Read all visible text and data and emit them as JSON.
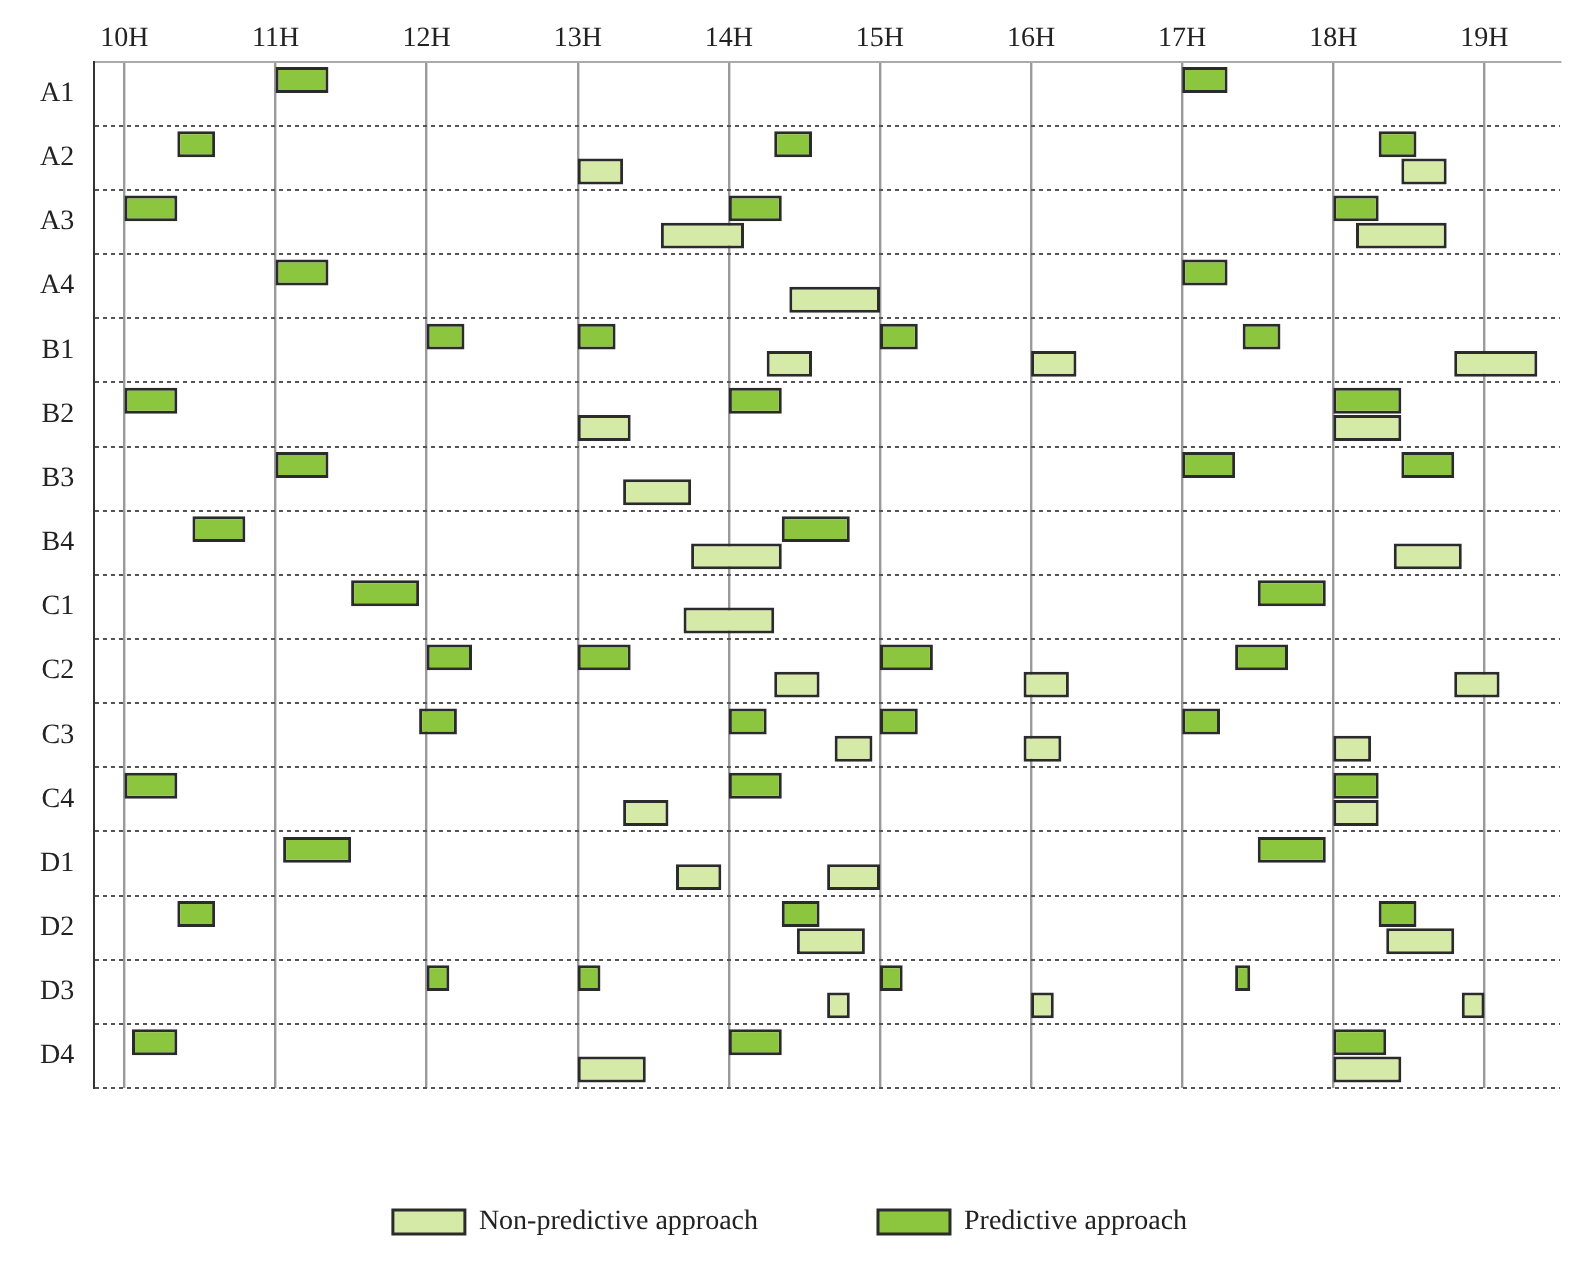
{
  "chart_data": {
    "type": "bar",
    "orientation": "horizontal",
    "categories": [
      "A1",
      "A2",
      "A3",
      "A4",
      "B1",
      "B2",
      "B3",
      "B4",
      "C1",
      "C2",
      "C3",
      "C4",
      "D1",
      "D2",
      "D3",
      "D4"
    ],
    "xlim": [
      9.8,
      19.5
    ],
    "xticks": [
      {
        "value": 10,
        "label": "10H"
      },
      {
        "value": 11,
        "label": "11H"
      },
      {
        "value": 12,
        "label": "12H"
      },
      {
        "value": 13,
        "label": "13H"
      },
      {
        "value": 14,
        "label": "14H"
      },
      {
        "value": 15,
        "label": "15H"
      },
      {
        "value": 16,
        "label": "16H"
      },
      {
        "value": 17,
        "label": "17H"
      },
      {
        "value": 18,
        "label": "18H"
      },
      {
        "value": 19,
        "label": "19H"
      }
    ],
    "grid": true,
    "legend": "bottom",
    "series": [
      {
        "name": "Predictive approach",
        "color": "#8cc63e",
        "base": [
          11.0,
          10.35,
          10.0,
          11.0,
          12.0,
          10.0,
          11.0,
          10.45,
          11.5,
          12.0,
          11.95,
          10.0,
          11.05,
          10.35,
          12.0,
          10.05
        ],
        "values": [
          0.35,
          0.25,
          0.35,
          0.35,
          0.25,
          0.35,
          0.35,
          0.35,
          0.45,
          0.3,
          0.25,
          0.35,
          0.45,
          0.25,
          0.15,
          0.3
        ]
      },
      {
        "color": "#8cc63e",
        "base": [
          17.0,
          14.3,
          14.0,
          17.0,
          13.0,
          14.0,
          17.0,
          14.35,
          17.5,
          13.0,
          14.0,
          14.0,
          17.5,
          14.35,
          13.0,
          14.0
        ],
        "values": [
          0.3,
          0.25,
          0.35,
          0.3,
          0.25,
          0.35,
          0.35,
          0.45,
          0.45,
          0.35,
          0.25,
          0.35,
          0.45,
          0.25,
          0.15,
          0.35
        ]
      },
      {
        "color": "#8cc63e",
        "base": [
          null,
          18.3,
          18.0,
          null,
          15.0,
          18.0,
          18.45,
          null,
          null,
          15.0,
          15.0,
          18.0,
          null,
          18.3,
          15.0,
          18.0
        ],
        "values": [
          null,
          0.25,
          0.3,
          null,
          0.25,
          0.45,
          0.35,
          null,
          null,
          0.35,
          0.25,
          0.3,
          null,
          0.25,
          0.15,
          0.35
        ]
      },
      {
        "color": "#8cc63e",
        "base": [
          null,
          null,
          null,
          null,
          17.4,
          null,
          null,
          null,
          null,
          17.35,
          17.0,
          null,
          null,
          null,
          17.35,
          null
        ],
        "values": [
          null,
          null,
          null,
          null,
          0.25,
          null,
          null,
          null,
          null,
          0.35,
          0.25,
          null,
          null,
          null,
          0.1,
          null
        ]
      },
      {
        "name": "Non-predictive approach",
        "color": "#d6eaa8",
        "base": [
          null,
          13.0,
          13.55,
          14.4,
          14.25,
          13.0,
          13.3,
          13.75,
          13.7,
          14.3,
          14.7,
          13.3,
          13.65,
          14.45,
          14.65,
          13.0
        ],
        "values": [
          null,
          0.3,
          0.55,
          0.6,
          0.3,
          0.35,
          0.45,
          0.6,
          0.6,
          0.3,
          0.25,
          0.3,
          0.3,
          0.45,
          0.15,
          0.45
        ]
      },
      {
        "color": "#d6eaa8",
        "base": [
          null,
          18.45,
          18.15,
          null,
          16.0,
          18.0,
          null,
          18.4,
          null,
          15.95,
          15.95,
          18.0,
          14.65,
          18.35,
          16.0,
          18.0
        ],
        "values": [
          null,
          0.3,
          0.6,
          null,
          0.3,
          0.45,
          null,
          0.45,
          null,
          0.3,
          0.25,
          0.3,
          0.35,
          0.45,
          0.15,
          0.45
        ]
      },
      {
        "color": "#d6eaa8",
        "base": [
          null,
          null,
          null,
          null,
          18.8,
          null,
          null,
          null,
          null,
          18.8,
          18.0,
          null,
          null,
          null,
          18.85,
          null
        ],
        "values": [
          null,
          null,
          null,
          null,
          0.55,
          null,
          null,
          null,
          null,
          0.3,
          0.25,
          null,
          null,
          null,
          0.15,
          null
        ]
      }
    ]
  }
}
